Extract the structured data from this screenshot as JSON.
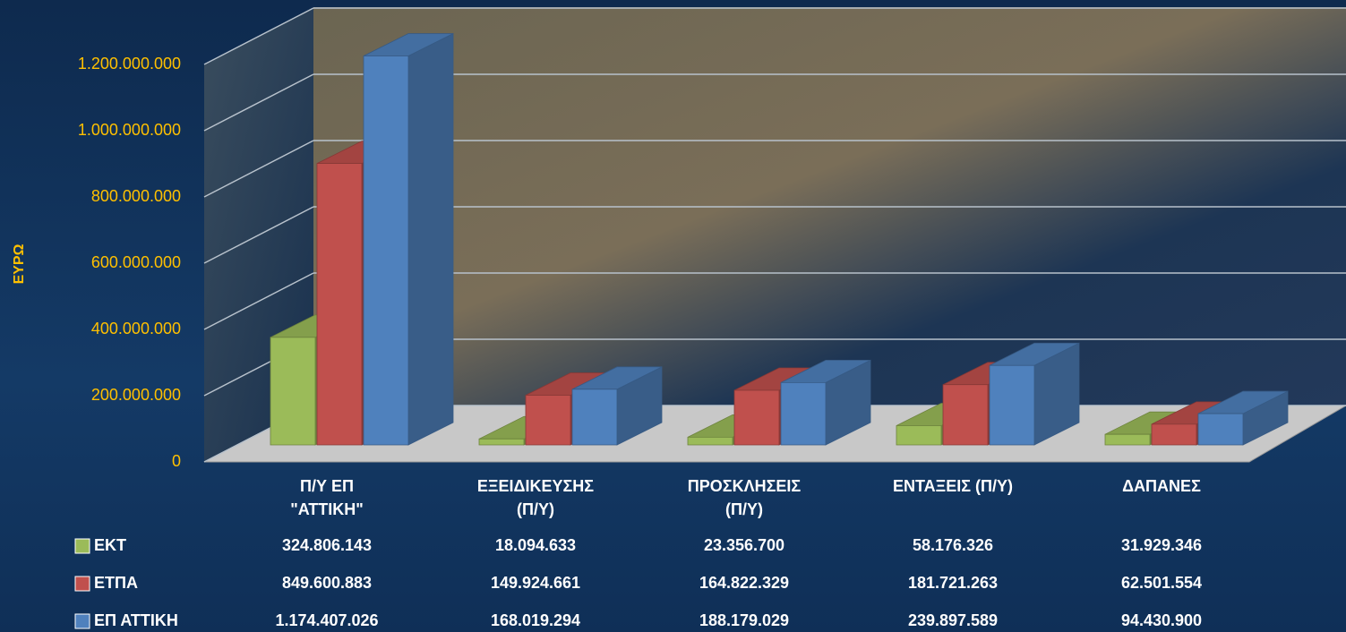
{
  "chart_data": {
    "type": "bar3d",
    "y_label": "ΕΥΡΩ",
    "categories": [
      "Π/Υ ΕΠ\n\"ΑΤΤΙΚΗ\"",
      "ΕΞΕΙΔΙΚΕΥΣΗΣ\n(Π/Υ)",
      "ΠΡΟΣΚΛΗΣΕΙΣ\n(Π/Υ)",
      "ΕΝΤΑΞΕΙΣ (Π/Υ)",
      "ΔΑΠΑΝΕΣ"
    ],
    "series": [
      {
        "name": "ΕΚΤ",
        "color": "#9bbb59",
        "values": [
          324806143,
          18094633,
          23356700,
          58176326,
          31929346
        ],
        "value_labels": [
          "324.806.143",
          "18.094.633",
          "23.356.700",
          "58.176.326",
          "31.929.346"
        ]
      },
      {
        "name": "ΕΤΠΑ",
        "color": "#c0504d",
        "values": [
          849600883,
          149924661,
          164822329,
          181721263,
          62501554
        ],
        "value_labels": [
          "849.600.883",
          "149.924.661",
          "164.822.329",
          "181.721.263",
          "62.501.554"
        ]
      },
      {
        "name": "ΕΠ ΑΤΤΙΚΗ",
        "color": "#4f81bd",
        "values": [
          1174407026,
          168019294,
          188179029,
          239897589,
          94430900
        ],
        "value_labels": [
          "1.174.407.026",
          "168.019.294",
          "188.179.029",
          "239.897.589",
          "94.430.900"
        ]
      }
    ],
    "ylim": [
      0,
      1200000000
    ],
    "yticks": [
      0,
      {
        "value": 200000000,
        "label": "200.000.000"
      },
      {
        "value": 400000000,
        "label": "400.000.000"
      },
      {
        "value": 600000000,
        "label": "600.000.000"
      },
      {
        "value": 800000000,
        "label": "800.000.000"
      },
      {
        "value": 1000000000,
        "label": "1.000.000.000"
      },
      {
        "value": 1200000000,
        "label": "1.200.000.000"
      }
    ],
    "grid": true,
    "legend": "bottom-left"
  }
}
